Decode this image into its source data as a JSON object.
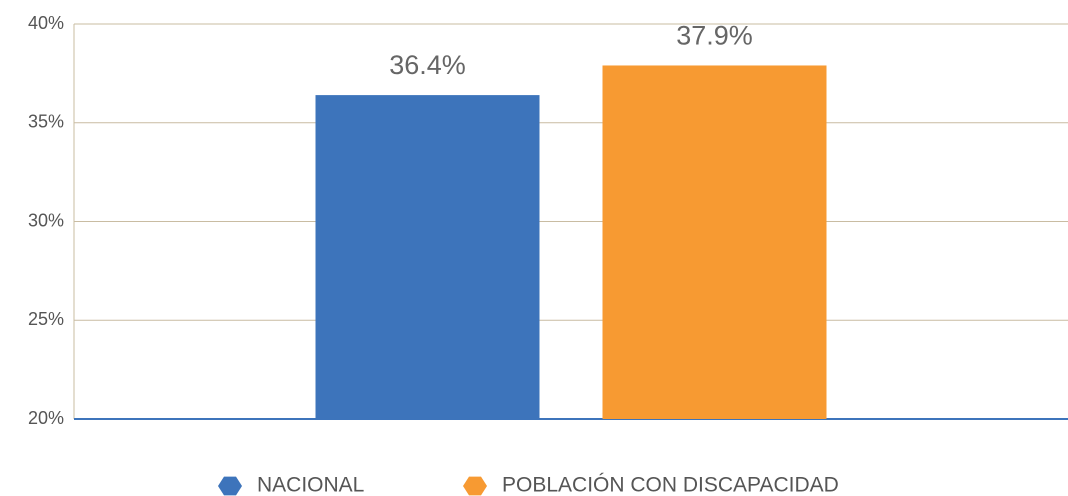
{
  "chart_data": {
    "type": "bar",
    "categories": [
      null
    ],
    "series": [
      {
        "name": "NACIONAL",
        "color": "#3d74bb",
        "values": [
          36.4
        ],
        "value_labels": [
          "36.4%"
        ]
      },
      {
        "name": "POBLACIÓN CON DISCAPACIDAD",
        "color": "#f79a32",
        "values": [
          37.9
        ],
        "value_labels": [
          "37.9%"
        ]
      }
    ],
    "ylim": [
      20,
      40
    ],
    "yticks": [
      {
        "value": 20,
        "label": "20%"
      },
      {
        "value": 25,
        "label": "25%"
      },
      {
        "value": 30,
        "label": "30%"
      },
      {
        "value": 35,
        "label": "35%"
      },
      {
        "value": 40,
        "label": "40%"
      }
    ],
    "grid": true
  }
}
